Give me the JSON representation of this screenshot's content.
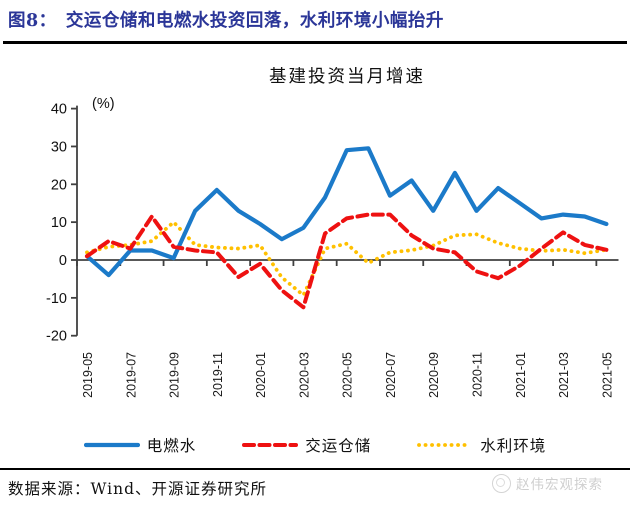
{
  "header": {
    "title": "图8：　交运仓储和电燃水投资回落，水利环境小幅抬升"
  },
  "chart_data": {
    "type": "line",
    "title": "基建投资当月增速",
    "unit_label": "(%)",
    "ylim": [
      -20,
      40
    ],
    "yticks": [
      40,
      30,
      20,
      10,
      0,
      -10,
      -20
    ],
    "grid": false,
    "legend_position": "bottom",
    "x": [
      "2019-05",
      "2019-06",
      "2019-07",
      "2019-08",
      "2019-09",
      "2019-10",
      "2019-11",
      "2019-12",
      "2020-01",
      "2020-02",
      "2020-03",
      "2020-04",
      "2020-05",
      "2020-06",
      "2020-07",
      "2020-08",
      "2020-09",
      "2020-10",
      "2020-11",
      "2020-12",
      "2021-01",
      "2021-02",
      "2021-03",
      "2021-04",
      "2021-05"
    ],
    "xtick_labels": [
      "2019-05",
      "2019-07",
      "2019-09",
      "2019-11",
      "2020-01",
      "2020-03",
      "2020-05",
      "2020-07",
      "2020-09",
      "2020-11",
      "2021-01",
      "2021-03",
      "2021-05"
    ],
    "series": [
      {
        "key": "utilities",
        "name": "电燃水",
        "color": "#1b7ac9",
        "style": "solid",
        "values": [
          1,
          -4,
          2.5,
          2.5,
          0.5,
          13,
          18.5,
          13,
          9.5,
          5.5,
          8.5,
          16.5,
          29,
          29.5,
          17,
          21,
          13,
          23,
          13,
          19,
          15,
          11,
          12,
          11.5,
          9.5
        ]
      },
      {
        "key": "transport",
        "name": "交运仓储",
        "color": "#ee1111",
        "style": "dashed",
        "values": [
          1,
          5,
          3,
          11.5,
          3.5,
          2.5,
          2,
          -4.5,
          -1,
          -8,
          -12.5,
          7,
          11,
          12,
          12,
          6.5,
          3,
          2,
          -3,
          -4.8,
          -1.5,
          3,
          7.3,
          4,
          2.7
        ]
      },
      {
        "key": "water-env",
        "name": "水利环境",
        "color": "#ffc000",
        "style": "dotted",
        "values": [
          2,
          3.5,
          4,
          5,
          10,
          4,
          3.3,
          3,
          3.9,
          -4.6,
          -9.3,
          3,
          4.3,
          -0.8,
          2,
          2.6,
          3.8,
          6.5,
          6.8,
          4.5,
          3,
          2.4,
          2.7,
          1.8,
          2.7
        ]
      }
    ]
  },
  "footer": {
    "source": "数据来源：Wind、开源证券研究所",
    "watermark": "赵伟宏观探索"
  }
}
